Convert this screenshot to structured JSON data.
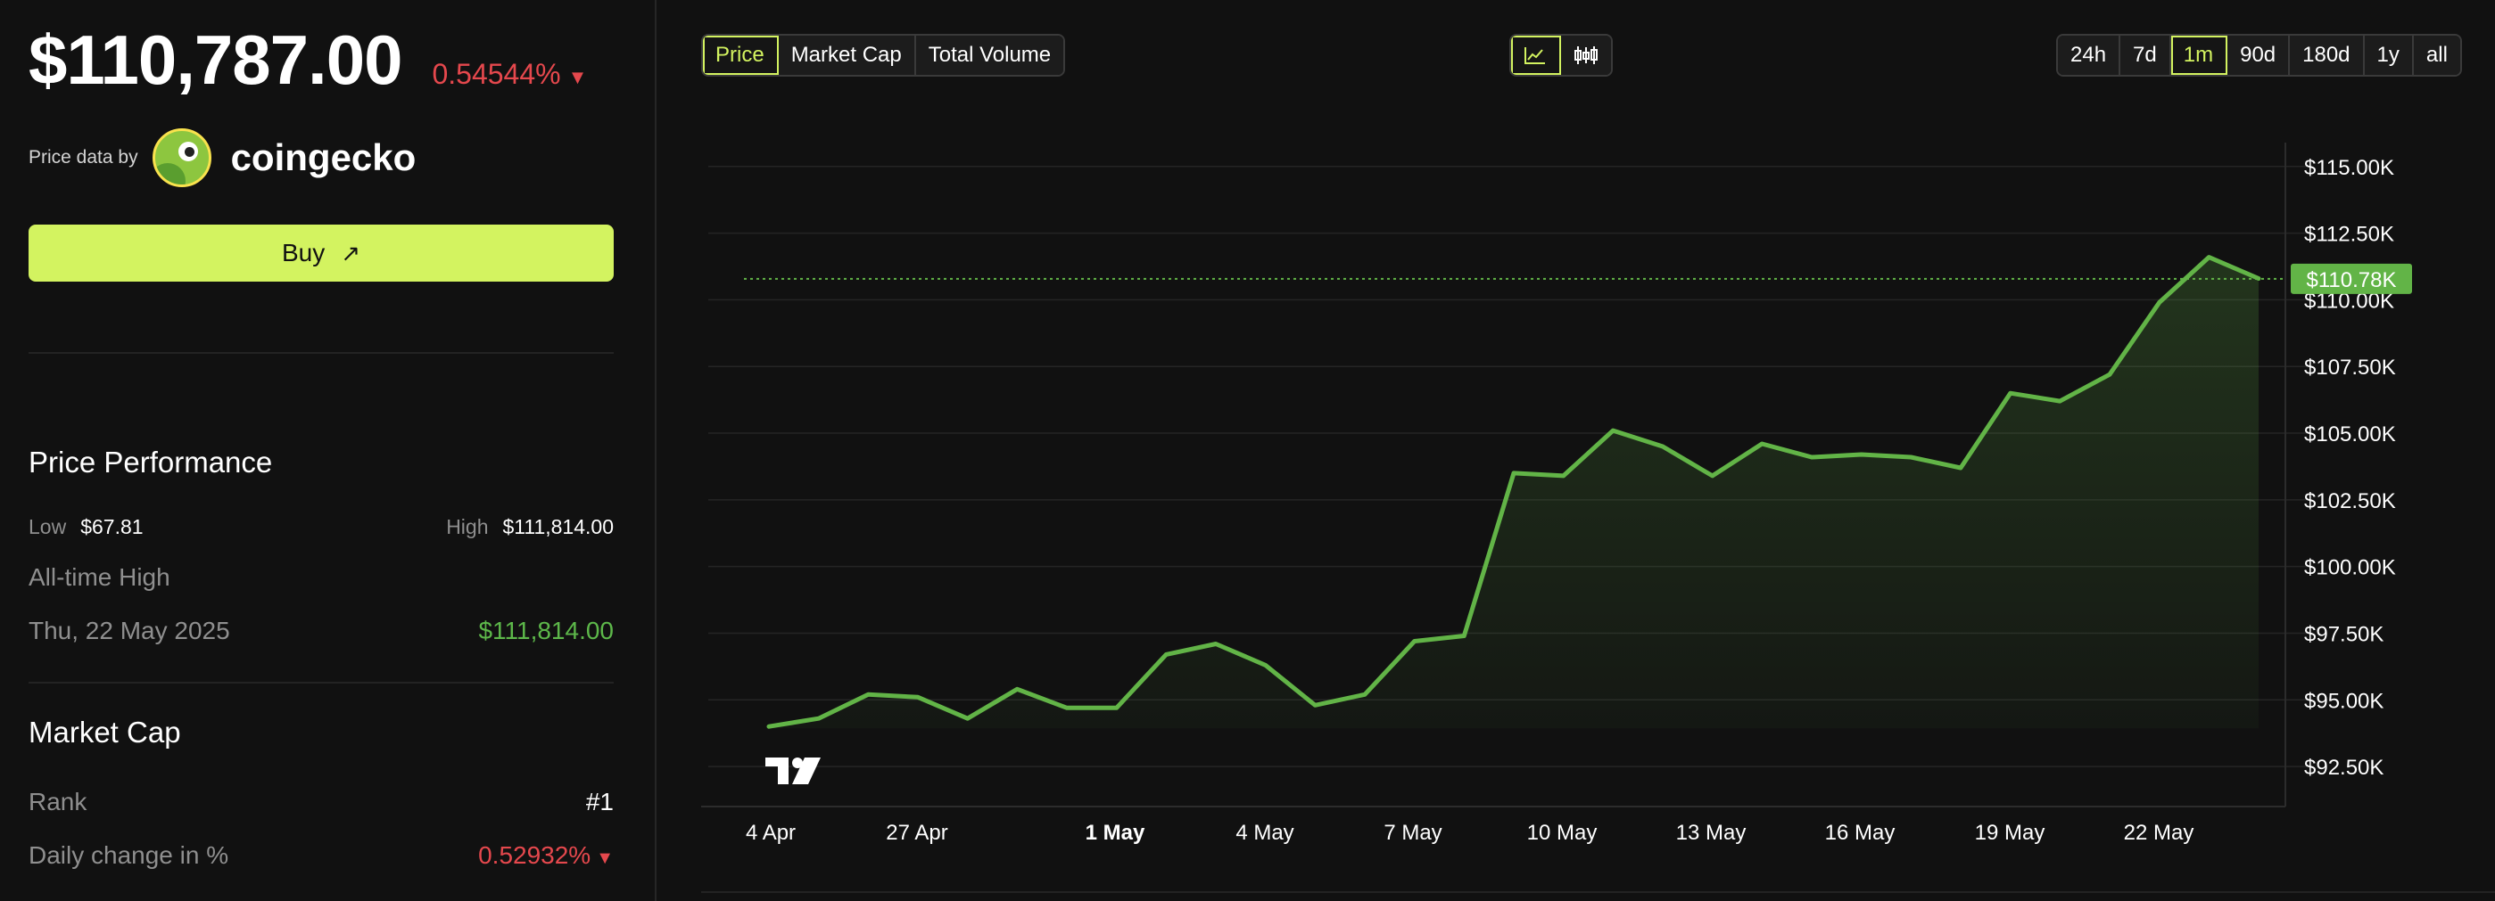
{
  "price": {
    "value": "$110,787.00",
    "change": "0.54544%",
    "change_direction_icon": "triangle-down-icon"
  },
  "price_source": {
    "label": "Price data by",
    "provider": "coingecko",
    "logo_icon": "coingecko-gecko-icon"
  },
  "buy": {
    "label": "Buy",
    "icon": "arrow-up-right-icon"
  },
  "performance": {
    "title": "Price Performance",
    "low_label": "Low",
    "low_value": "$67.81",
    "high_label": "High",
    "high_value": "$111,814.00",
    "ath_label": "All-time High",
    "ath_date": "Thu, 22 May 2025",
    "ath_value": "$111,814.00"
  },
  "market_cap": {
    "title": "Market Cap",
    "rank_label": "Rank",
    "rank_value": "#1",
    "daily_change_label": "Daily change in %",
    "daily_change_value": "0.52932%"
  },
  "metric_tabs": [
    {
      "label": "Price",
      "active": true
    },
    {
      "label": "Market Cap",
      "active": false
    },
    {
      "label": "Total Volume",
      "active": false
    }
  ],
  "chart_type_toggle": [
    {
      "icon": "line-chart-icon",
      "active": true
    },
    {
      "icon": "candlestick-icon",
      "active": false
    }
  ],
  "time_ranges": [
    {
      "label": "24h",
      "active": false
    },
    {
      "label": "7d",
      "active": false
    },
    {
      "label": "1m",
      "active": true
    },
    {
      "label": "90d",
      "active": false
    },
    {
      "label": "180d",
      "active": false
    },
    {
      "label": "1y",
      "active": false
    },
    {
      "label": "all",
      "active": false
    }
  ],
  "colors": {
    "accent": "#d3f360",
    "line": "#62b447",
    "negative": "#e5484d",
    "positive": "#5db84a"
  },
  "chart_data": {
    "type": "area",
    "x_tick_labels": [
      "4 Apr",
      "27 Apr",
      "1 May",
      "4 May",
      "7 May",
      "10 May",
      "13 May",
      "16 May",
      "19 May",
      "22 May"
    ],
    "x_tick_bold": "1 May",
    "y_tick_labels": [
      "$115.00K",
      "$112.50K",
      "$110.00K",
      "$107.50K",
      "$105.00K",
      "$102.50K",
      "$100.00K",
      "$97.50K",
      "$95.00K",
      "$92.50K"
    ],
    "y_ticks": [
      115000,
      112500,
      110000,
      107500,
      105000,
      102500,
      100000,
      97500,
      95000,
      92500
    ],
    "ylim": [
      91000,
      117500
    ],
    "current_price_label": "$110.78K",
    "current_price": 110787,
    "watermark": "TV",
    "series": [
      {
        "values": [
          94000,
          94300,
          95200,
          95100,
          94300,
          95400,
          94700,
          94700,
          96700,
          97100,
          96300,
          94800,
          95200,
          97200,
          97400,
          103500,
          103400,
          105100,
          104500,
          103400,
          104600,
          104100,
          104200,
          104100,
          103700,
          106500,
          106200,
          107200,
          109900,
          111600,
          110800
        ]
      }
    ]
  }
}
